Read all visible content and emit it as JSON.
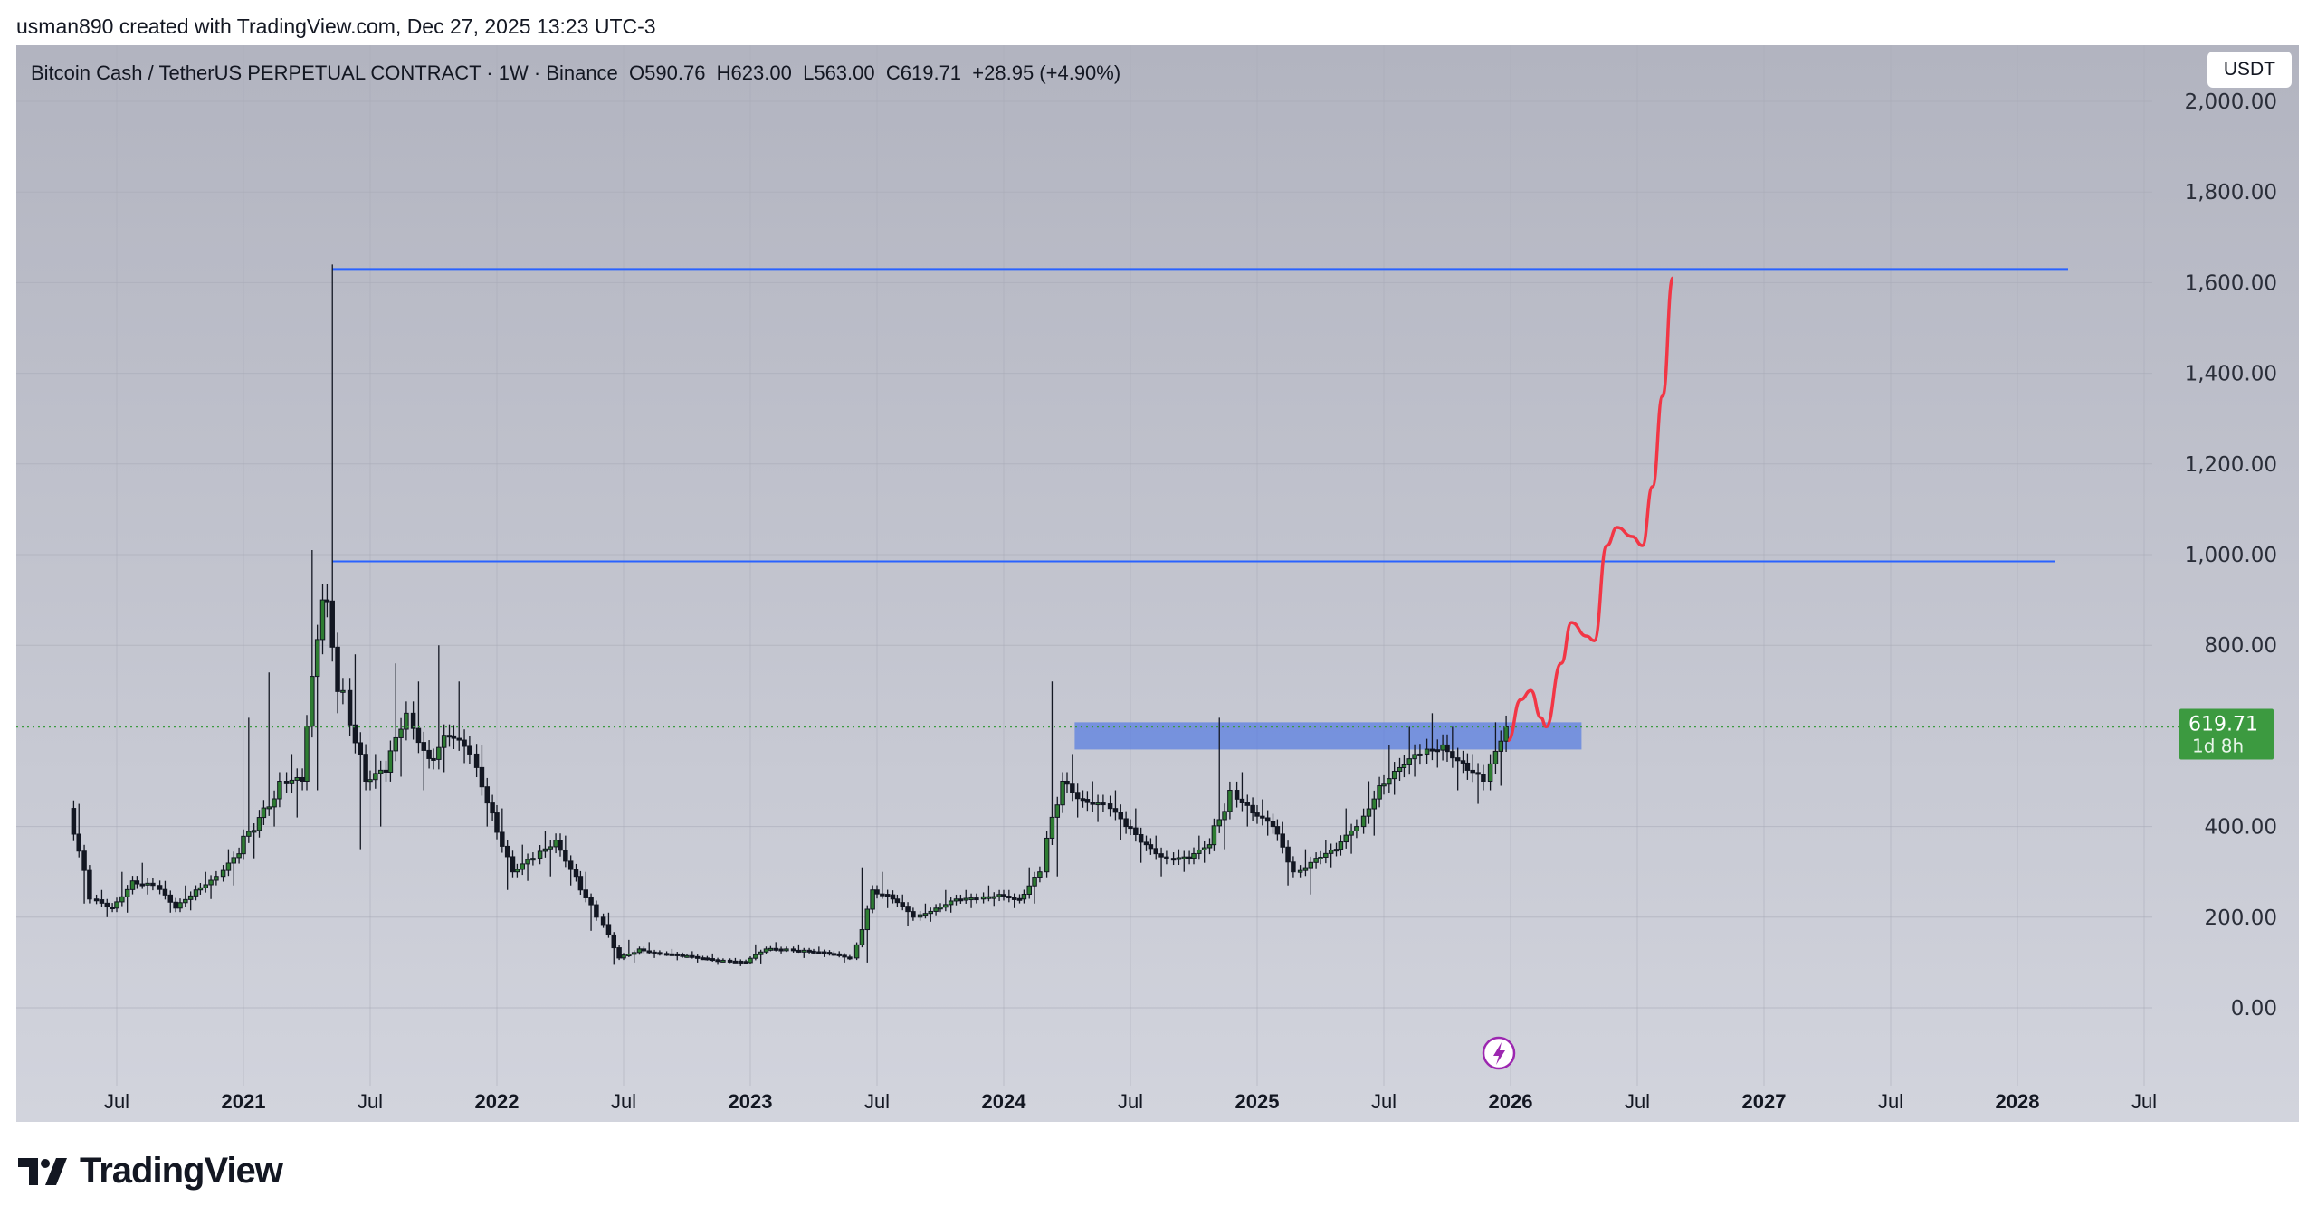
{
  "watermark": "usman890 created with TradingView.com, Dec 27, 2025 13:23 UTC-3",
  "legend": {
    "symbol": "Bitcoin Cash / TetherUS PERPETUAL CONTRACT · 1W · Binance",
    "open": "O590.76",
    "high": "H623.00",
    "low": "L563.00",
    "close": "C619.71",
    "change": "+28.95 (+4.90%)"
  },
  "currency_button": "USDT",
  "logo_text": "TradingView",
  "colors": {
    "up": "#2e7d32",
    "down": "#131722",
    "levels": "#2962ff",
    "zone": "#5b7fe0",
    "projection": "#f23645",
    "price_badge": "#3c9a40"
  },
  "chart_data": {
    "type": "candlestick",
    "y_ticks": [
      "0.00",
      "200.00",
      "400.00",
      "800.00",
      "1,000.00",
      "1,200.00",
      "1,400.00",
      "1,600.00",
      "1,800.00",
      "2,000.00"
    ],
    "y_tick_values": [
      0,
      200,
      400,
      800,
      1000,
      1200,
      1400,
      1600,
      1800,
      2000
    ],
    "ylim": [
      -120,
      2050
    ],
    "x_ticks": [
      {
        "t": 2020.5,
        "label": "Jul"
      },
      {
        "t": 2021,
        "label": "2021"
      },
      {
        "t": 2021.5,
        "label": "Jul"
      },
      {
        "t": 2022,
        "label": "2022"
      },
      {
        "t": 2022.5,
        "label": "Jul"
      },
      {
        "t": 2023,
        "label": "2023"
      },
      {
        "t": 2023.5,
        "label": "Jul"
      },
      {
        "t": 2024,
        "label": "2024"
      },
      {
        "t": 2024.5,
        "label": "Jul"
      },
      {
        "t": 2025,
        "label": "2025"
      },
      {
        "t": 2025.5,
        "label": "Jul"
      },
      {
        "t": 2026,
        "label": "2026"
      },
      {
        "t": 2026.5,
        "label": "Jul"
      },
      {
        "t": 2027,
        "label": "2027"
      },
      {
        "t": 2027.5,
        "label": "Jul"
      },
      {
        "t": 2028,
        "label": "2028"
      },
      {
        "t": 2028.5,
        "label": "Jul"
      }
    ],
    "monthly_ohlc": [
      [
        2020.33,
        440,
        450,
        230,
        240
      ],
      [
        2020.42,
        240,
        260,
        200,
        220
      ],
      [
        2020.5,
        220,
        300,
        210,
        280
      ],
      [
        2020.58,
        280,
        320,
        250,
        270
      ],
      [
        2020.67,
        270,
        280,
        210,
        220
      ],
      [
        2020.75,
        220,
        270,
        215,
        260
      ],
      [
        2020.83,
        260,
        300,
        240,
        290
      ],
      [
        2020.92,
        290,
        350,
        270,
        340
      ],
      [
        2021.0,
        340,
        640,
        330,
        420
      ],
      [
        2021.08,
        420,
        740,
        400,
        500
      ],
      [
        2021.17,
        500,
        560,
        420,
        500
      ],
      [
        2021.25,
        500,
        1010,
        480,
        900
      ],
      [
        2021.33,
        900,
        1640,
        650,
        700
      ],
      [
        2021.42,
        700,
        780,
        350,
        500
      ],
      [
        2021.5,
        500,
        560,
        400,
        520
      ],
      [
        2021.58,
        520,
        760,
        510,
        650
      ],
      [
        2021.67,
        650,
        720,
        480,
        550
      ],
      [
        2021.75,
        550,
        800,
        520,
        600
      ],
      [
        2021.83,
        600,
        720,
        540,
        560
      ],
      [
        2021.92,
        560,
        580,
        400,
        430
      ],
      [
        2022.0,
        430,
        440,
        260,
        300
      ],
      [
        2022.08,
        300,
        360,
        280,
        330
      ],
      [
        2022.17,
        330,
        390,
        290,
        370
      ],
      [
        2022.25,
        370,
        380,
        270,
        290
      ],
      [
        2022.33,
        290,
        300,
        170,
        200
      ],
      [
        2022.42,
        200,
        210,
        95,
        110
      ],
      [
        2022.5,
        110,
        150,
        100,
        130
      ],
      [
        2022.58,
        130,
        145,
        110,
        120
      ],
      [
        2022.67,
        120,
        130,
        105,
        115
      ],
      [
        2022.75,
        115,
        125,
        100,
        110
      ],
      [
        2022.83,
        110,
        120,
        95,
        105
      ],
      [
        2022.92,
        105,
        110,
        92,
        100
      ],
      [
        2023.0,
        100,
        140,
        98,
        130
      ],
      [
        2023.08,
        130,
        145,
        120,
        130
      ],
      [
        2023.17,
        130,
        140,
        110,
        125
      ],
      [
        2023.25,
        125,
        135,
        112,
        120
      ],
      [
        2023.33,
        120,
        125,
        100,
        110
      ],
      [
        2023.42,
        110,
        310,
        100,
        260
      ],
      [
        2023.5,
        260,
        300,
        220,
        240
      ],
      [
        2023.58,
        240,
        250,
        180,
        200
      ],
      [
        2023.67,
        200,
        230,
        190,
        220
      ],
      [
        2023.75,
        220,
        260,
        210,
        240
      ],
      [
        2023.83,
        240,
        260,
        220,
        240
      ],
      [
        2023.92,
        240,
        270,
        225,
        250
      ],
      [
        2024.0,
        250,
        260,
        220,
        240
      ],
      [
        2024.08,
        240,
        310,
        230,
        300
      ],
      [
        2024.17,
        300,
        720,
        290,
        500
      ],
      [
        2024.25,
        500,
        560,
        420,
        460
      ],
      [
        2024.33,
        460,
        500,
        410,
        450
      ],
      [
        2024.42,
        450,
        480,
        370,
        400
      ],
      [
        2024.5,
        400,
        440,
        320,
        360
      ],
      [
        2024.58,
        360,
        380,
        290,
        330
      ],
      [
        2024.67,
        330,
        350,
        300,
        330
      ],
      [
        2024.75,
        330,
        380,
        320,
        360
      ],
      [
        2024.83,
        360,
        640,
        350,
        480
      ],
      [
        2024.92,
        480,
        520,
        400,
        430
      ],
      [
        2025.0,
        430,
        460,
        380,
        400
      ],
      [
        2025.08,
        400,
        410,
        270,
        300
      ],
      [
        2025.17,
        300,
        350,
        250,
        330
      ],
      [
        2025.25,
        330,
        370,
        310,
        350
      ],
      [
        2025.33,
        350,
        440,
        340,
        400
      ],
      [
        2025.42,
        400,
        500,
        380,
        490
      ],
      [
        2025.5,
        490,
        580,
        470,
        530
      ],
      [
        2025.58,
        530,
        620,
        510,
        560
      ],
      [
        2025.67,
        560,
        650,
        530,
        580
      ],
      [
        2025.75,
        580,
        620,
        480,
        540
      ],
      [
        2025.83,
        540,
        560,
        450,
        500
      ],
      [
        2025.92,
        500,
        630,
        490,
        620
      ]
    ],
    "last_price": 619.71,
    "last_price_label": "619.71",
    "countdown": "1d 8h",
    "horizontal_levels": [
      {
        "price": 1630,
        "from": 2021.35,
        "to": 2028.2
      },
      {
        "price": 985,
        "from": 2021.35,
        "to": 2028.15
      }
    ],
    "zone": {
      "top": 630,
      "bottom": 570,
      "from": 2024.28,
      "to": 2026.28
    },
    "projection": [
      [
        2025.99,
        590
      ],
      [
        2026.04,
        680
      ],
      [
        2026.08,
        700
      ],
      [
        2026.12,
        640
      ],
      [
        2026.14,
        620
      ],
      [
        2026.2,
        760
      ],
      [
        2026.24,
        850
      ],
      [
        2026.3,
        820
      ],
      [
        2026.33,
        810
      ],
      [
        2026.38,
        1020
      ],
      [
        2026.42,
        1060
      ],
      [
        2026.48,
        1040
      ],
      [
        2026.52,
        1020
      ],
      [
        2026.56,
        1150
      ],
      [
        2026.6,
        1350
      ],
      [
        2026.64,
        1610
      ]
    ]
  }
}
